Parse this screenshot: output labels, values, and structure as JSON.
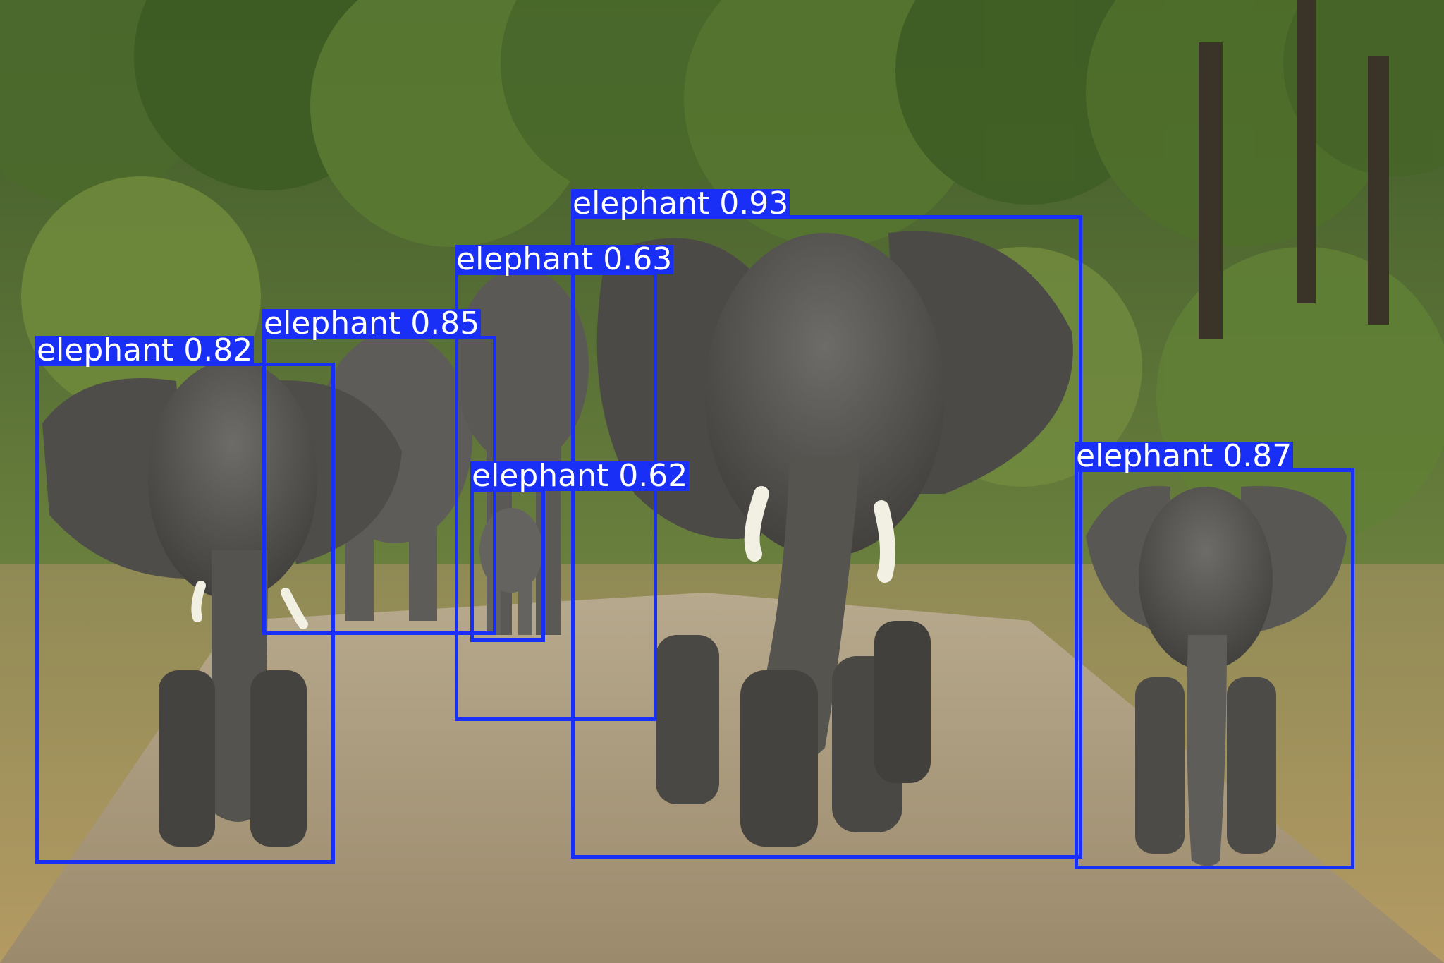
{
  "detection_color": "#1a2ff5",
  "detections": [
    {
      "label": "elephant 0.93"
    },
    {
      "label": "elephant 0.63"
    },
    {
      "label": "elephant 0.85"
    },
    {
      "label": "elephant 0.82"
    },
    {
      "label": "elephant 0.62"
    },
    {
      "label": "elephant 0.87"
    }
  ]
}
